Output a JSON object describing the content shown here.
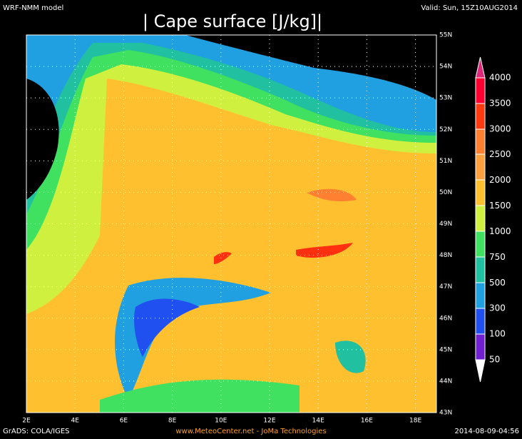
{
  "header": {
    "model": "WRF-NMM model",
    "title": "| Cape surface [J/kg]|",
    "valid": "Valid: Sun, 15Z10AUG2014"
  },
  "x_axis": [
    "2E",
    "4E",
    "6E",
    "8E",
    "10E",
    "12E",
    "14E",
    "16E",
    "18E"
  ],
  "y_axis": [
    "55N",
    "54N",
    "53N",
    "52N",
    "51N",
    "50N",
    "49N",
    "48N",
    "47N",
    "46N",
    "45N",
    "44N",
    "43N"
  ],
  "colorbar": {
    "levels": [
      50,
      100,
      300,
      500,
      750,
      1000,
      1500,
      2000,
      2500,
      3000,
      3500,
      4000
    ]
  },
  "footer": {
    "left": "GrADS: COLA/IGES",
    "center": "www.MeteoCenter.net  -  JoMa Technologies",
    "right": "2014-08-09-04:56"
  }
}
